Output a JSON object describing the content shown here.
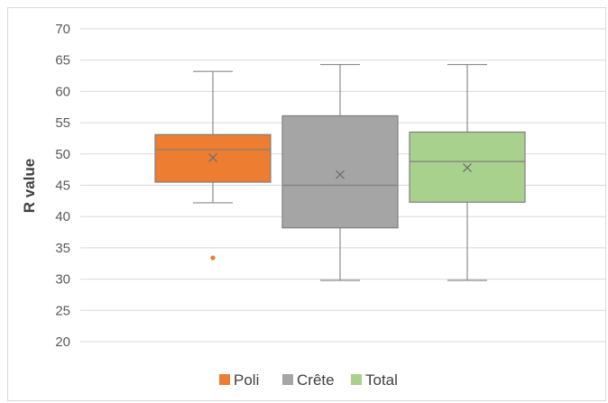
{
  "chart_data": {
    "type": "boxplot",
    "ylabel": "R value",
    "xlabel": "",
    "ylim": [
      20,
      70
    ],
    "yticks": [
      20,
      25,
      30,
      35,
      40,
      45,
      50,
      55,
      60,
      65,
      70
    ],
    "ytick_labels": [
      "20",
      "25",
      "30",
      "35",
      "40",
      "45",
      "50",
      "55",
      "60",
      "65",
      "70"
    ],
    "grid": true,
    "legend_position": "bottom",
    "series": [
      {
        "name": "Poli",
        "color": "#ed7d31",
        "whisker_low": 42.2,
        "q1": 45.5,
        "median": 50.7,
        "q3": 53.1,
        "whisker_high": 63.2,
        "mean": 49.4,
        "outliers": [
          33.4
        ]
      },
      {
        "name": "Crête",
        "color": "#a5a5a5",
        "whisker_low": 29.8,
        "q1": 38.2,
        "median": 45.0,
        "q3": 56.1,
        "whisker_high": 64.3,
        "mean": 46.7,
        "outliers": []
      },
      {
        "name": "Total",
        "color": "#a9d18e",
        "whisker_low": 29.8,
        "q1": 42.3,
        "median": 48.8,
        "q3": 53.5,
        "whisker_high": 64.3,
        "mean": 47.8,
        "outliers": []
      }
    ]
  }
}
